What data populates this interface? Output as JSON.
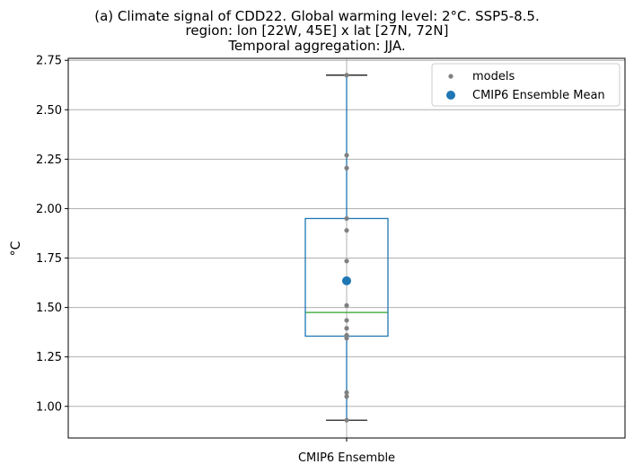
{
  "title_lines": [
    "(a) Climate signal of CDD22. Global warming level: 2°C. SSP5-8.5.",
    "region: lon [22W, 45E] x lat [27N, 72N]",
    "Temporal aggregation: JJA."
  ],
  "chart_data": {
    "type": "box",
    "title": "(a) Climate signal of CDD22. Global warming level: 2°C. SSP5-8.5. region: lon [22W, 45E] x lat [27N, 72N] Temporal aggregation: JJA.",
    "xlabel": "",
    "ylabel": "°C",
    "categories": [
      "CMIP6 Ensemble"
    ],
    "ylim": [
      0.84,
      2.76
    ],
    "yticks": [
      1.0,
      1.25,
      1.5,
      1.75,
      2.0,
      2.25,
      2.5,
      2.75
    ],
    "ytick_labels": [
      "1.00",
      "1.25",
      "1.50",
      "1.75",
      "2.00",
      "2.25",
      "2.50",
      "2.75"
    ],
    "grid": true,
    "legend_position": "top-right",
    "box": {
      "whisker_low": 0.93,
      "q1": 1.355,
      "median": 1.475,
      "q3": 1.95,
      "whisker_high": 2.675
    },
    "series": [
      {
        "name": "models",
        "color": "#808080",
        "values": [
          0.93,
          1.05,
          1.07,
          1.345,
          1.36,
          1.395,
          1.435,
          1.51,
          1.735,
          1.89,
          1.95,
          2.205,
          2.27,
          2.675
        ]
      },
      {
        "name": "CMIP6 Ensemble Mean",
        "color": "#1f77b4",
        "values": [
          1.635
        ]
      }
    ],
    "colors": {
      "box": "#1f77b4",
      "median": "#2ca02c",
      "whisker_cap": "#000000",
      "grid": "#b0b0b0"
    }
  }
}
